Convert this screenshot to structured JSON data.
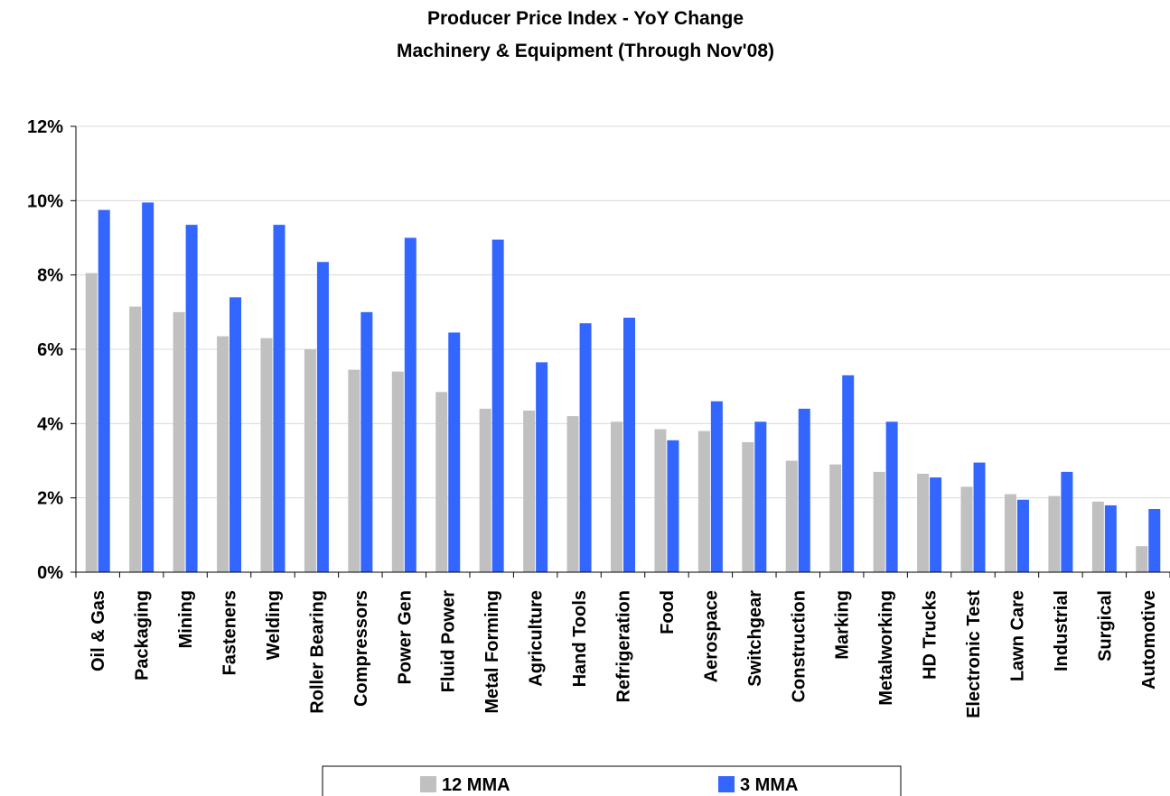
{
  "chart_data": {
    "type": "bar",
    "title": "Producer Price Index - YoY Change",
    "subtitle": "Machinery & Equipment (Through Nov'08)",
    "xlabel": "",
    "ylabel": "",
    "ylim": [
      0,
      12
    ],
    "yticks": [
      "0%",
      "2%",
      "4%",
      "6%",
      "8%",
      "10%",
      "12%"
    ],
    "grid": true,
    "legend_position": "bottom-center",
    "categories": [
      "Oil & Gas",
      "Packaging",
      "Mining",
      "Fasteners",
      "Welding",
      "Roller Bearing",
      "Compressors",
      "Power Gen",
      "Fluid Power",
      "Metal Forming",
      "Agriculture",
      "Hand Tools",
      "Refrigeration",
      "Food",
      "Aerospace",
      "Switchgear",
      "Construction",
      "Marking",
      "Metalworking",
      "HD Trucks",
      "Electronic Test",
      "Lawn Care",
      "Industrial",
      "Surgical",
      "Automotive"
    ],
    "series": [
      {
        "name": "12 MMA",
        "color": "#c0c0c0",
        "values": [
          8.05,
          7.15,
          7.0,
          6.35,
          6.3,
          6.0,
          5.45,
          5.4,
          4.85,
          4.4,
          4.35,
          4.2,
          4.05,
          3.85,
          3.8,
          3.5,
          3.0,
          2.9,
          2.7,
          2.65,
          2.3,
          2.1,
          2.05,
          1.9,
          0.7
        ]
      },
      {
        "name": "3 MMA",
        "color": "#3366ff",
        "values": [
          9.75,
          9.95,
          9.35,
          7.4,
          9.35,
          8.35,
          7.0,
          9.0,
          6.45,
          8.95,
          5.65,
          6.7,
          6.85,
          3.55,
          4.6,
          4.05,
          4.4,
          5.3,
          4.05,
          2.55,
          2.95,
          1.95,
          2.7,
          1.8,
          1.7
        ]
      }
    ]
  }
}
